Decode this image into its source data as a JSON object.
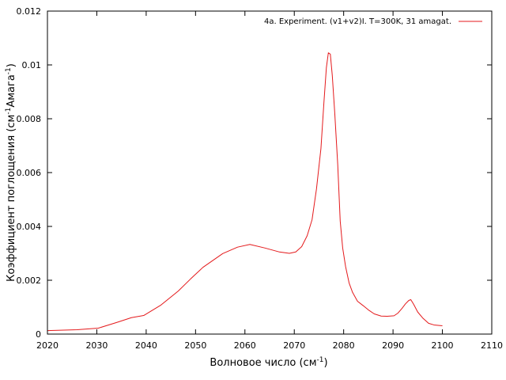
{
  "chart_data": {
    "type": "line",
    "title": "",
    "xlabel": {
      "text": "Волновое число (см",
      "sup": "-1",
      "tail": ")"
    },
    "ylabel": {
      "text": "Коэффициент поглощения (см",
      "sup": "-1",
      "mid": "Амага",
      "sup2": "-1",
      "tail": ")"
    },
    "xlim": [
      2020,
      2110
    ],
    "ylim": [
      0,
      0.012
    ],
    "xticks": [
      2020,
      2030,
      2040,
      2050,
      2060,
      2070,
      2080,
      2090,
      2100,
      2110
    ],
    "yticks": [
      "0",
      "0.002",
      "0.004",
      "0.006",
      "0.008",
      "0.01",
      "0.012"
    ],
    "ytick_values": [
      0,
      0.002,
      0.004,
      0.006,
      0.008,
      0.01,
      0.012
    ],
    "grid": false,
    "legend_position": "top-right",
    "series": [
      {
        "name": "4a. Experiment. (v1+v2)I. T=300K, 31 amagat.",
        "color": "#e41a1c",
        "x": [
          2020.0,
          2026.0,
          2030.3,
          2034.0,
          2037.0,
          2039.5,
          2043.0,
          2046.5,
          2049.0,
          2051.5,
          2055.5,
          2058.5,
          2061.0,
          2064.0,
          2067.0,
          2069.0,
          2070.3,
          2071.5,
          2072.6,
          2073.6,
          2074.5,
          2075.4,
          2076.0,
          2076.5,
          2076.9,
          2077.3,
          2077.7,
          2078.2,
          2078.8,
          2079.3,
          2079.8,
          2080.4,
          2081.1,
          2081.8,
          2082.8,
          2084.0,
          2085.0,
          2086.2,
          2087.6,
          2088.8,
          2090.2,
          2091.0,
          2091.8,
          2092.5,
          2093.2,
          2093.6,
          2094.2,
          2095.0,
          2096.0,
          2097.2,
          2098.3,
          2100.0
        ],
        "y": [
          0.00013,
          0.00016,
          0.00022,
          0.00043,
          0.00061,
          0.00069,
          0.00108,
          0.0016,
          0.00205,
          0.00248,
          0.00299,
          0.00323,
          0.00333,
          0.0032,
          0.00305,
          0.003,
          0.00305,
          0.00325,
          0.00365,
          0.00425,
          0.0054,
          0.0069,
          0.0086,
          0.0099,
          0.01045,
          0.0104,
          0.0096,
          0.0082,
          0.0063,
          0.0042,
          0.0032,
          0.0025,
          0.0019,
          0.00155,
          0.00122,
          0.00105,
          0.0009,
          0.00075,
          0.00067,
          0.00066,
          0.00068,
          0.00078,
          0.00095,
          0.00112,
          0.00125,
          0.00128,
          0.0011,
          0.00082,
          0.0006,
          0.0004,
          0.00034,
          0.00031
        ]
      }
    ]
  }
}
